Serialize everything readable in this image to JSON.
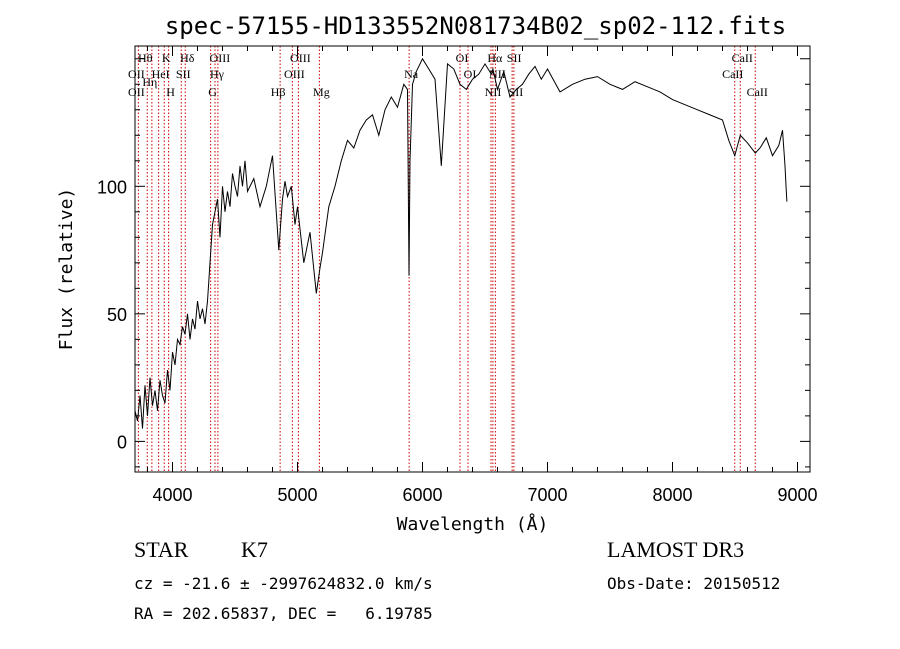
{
  "chart_data": {
    "type": "line",
    "title": "spec-57155-HD133552N081734B02_sp02-112.fits",
    "xlabel": "Wavelength (Å)",
    "ylabel": "Flux (relative)",
    "xlim": [
      3700,
      9100
    ],
    "ylim": [
      -12,
      155
    ],
    "xticks": [
      4000,
      5000,
      6000,
      7000,
      8000,
      9000
    ],
    "yticks": [
      0,
      50,
      100
    ],
    "grid": false,
    "series": [
      {
        "x": [
          3700,
          3720,
          3740,
          3760,
          3780,
          3800,
          3820,
          3840,
          3860,
          3880,
          3900,
          3920,
          3940,
          3960,
          3980,
          4000,
          4020,
          4040,
          4060,
          4080,
          4100,
          4120,
          4140,
          4160,
          4180,
          4200,
          4220,
          4240,
          4260,
          4280,
          4300,
          4320,
          4340,
          4360,
          4380,
          4400,
          4420,
          4440,
          4460,
          4480,
          4500,
          4520,
          4540,
          4560,
          4580,
          4600,
          4650,
          4700,
          4750,
          4800,
          4850,
          4880,
          4900,
          4920,
          4950,
          4980,
          5000,
          5050,
          5100,
          5150,
          5180,
          5200,
          5250,
          5300,
          5350,
          5400,
          5450,
          5500,
          5550,
          5600,
          5650,
          5700,
          5750,
          5800,
          5850,
          5880,
          5892,
          5900,
          5920,
          5950,
          6000,
          6050,
          6100,
          6150,
          6200,
          6250,
          6300,
          6350,
          6400,
          6450,
          6500,
          6550,
          6563,
          6600,
          6650,
          6700,
          6750,
          6800,
          6850,
          6900,
          6950,
          7000,
          7100,
          7200,
          7300,
          7400,
          7500,
          7600,
          7700,
          7800,
          7900,
          8000,
          8100,
          8200,
          8300,
          8400,
          8450,
          8498,
          8542,
          8600,
          8662,
          8700,
          8750,
          8800,
          8850,
          8880,
          8900,
          8910,
          8915
        ],
        "y": [
          12,
          8,
          18,
          5,
          22,
          10,
          25,
          14,
          20,
          12,
          24,
          18,
          15,
          28,
          20,
          35,
          30,
          40,
          38,
          45,
          42,
          50,
          40,
          48,
          44,
          55,
          48,
          52,
          46,
          55,
          70,
          85,
          90,
          95,
          80,
          100,
          90,
          98,
          92,
          105,
          100,
          96,
          108,
          100,
          110,
          98,
          103,
          92,
          100,
          112,
          75,
          95,
          102,
          96,
          100,
          85,
          92,
          70,
          82,
          58,
          68,
          74,
          92,
          100,
          110,
          118,
          115,
          122,
          126,
          128,
          120,
          130,
          135,
          131,
          140,
          138,
          65,
          110,
          140,
          145,
          150,
          146,
          142,
          108,
          148,
          146,
          140,
          138,
          142,
          144,
          148,
          144,
          146,
          138,
          145,
          135,
          138,
          140,
          144,
          147,
          142,
          146,
          137,
          140,
          142,
          143,
          140,
          138,
          141,
          139,
          137,
          134,
          132,
          130,
          128,
          126,
          118,
          112,
          120,
          117,
          113,
          115,
          119,
          112,
          116,
          122,
          108,
          98,
          94
        ]
      }
    ],
    "annotations": [
      {
        "text": "Hθ",
        "x": 3798
      },
      {
        "text": "OII",
        "x": 3727
      },
      {
        "text": "OII",
        "x": 3727
      },
      {
        "text": "K",
        "x": 3934
      },
      {
        "text": "HeI",
        "x": 3889
      },
      {
        "text": "Hη",
        "x": 3835
      },
      {
        "text": "Hδ",
        "x": 4102
      },
      {
        "text": "SII",
        "x": 4070
      },
      {
        "text": "H",
        "x": 3969
      },
      {
        "text": "OIII",
        "x": 4363
      },
      {
        "text": "Hγ",
        "x": 4340
      },
      {
        "text": "G",
        "x": 4305
      },
      {
        "text": "OIII",
        "x": 5007
      },
      {
        "text": "OIII",
        "x": 4959
      },
      {
        "text": "Hβ",
        "x": 4861
      },
      {
        "text": "Mg",
        "x": 5175
      },
      {
        "text": "Na",
        "x": 5893
      },
      {
        "text": "OI",
        "x": 6300
      },
      {
        "text": "OI",
        "x": 6364
      },
      {
        "text": "Hα",
        "x": 6563
      },
      {
        "text": "SII",
        "x": 6717
      },
      {
        "text": "NII",
        "x": 6548
      },
      {
        "text": "SII",
        "x": 6731
      },
      {
        "text": "NII",
        "x": 6583
      },
      {
        "text": "CaII",
        "x": 8542
      },
      {
        "text": "CaII",
        "x": 8498
      },
      {
        "text": "CaII",
        "x": 8662
      }
    ],
    "line_markers": [
      3727,
      3798,
      3835,
      3889,
      3934,
      3969,
      4070,
      4102,
      4305,
      4340,
      4363,
      4861,
      4959,
      5007,
      5175,
      5893,
      6300,
      6364,
      6548,
      6563,
      6583,
      6717,
      6731,
      8498,
      8542,
      8662
    ]
  },
  "info": {
    "object_class": "STAR",
    "subclass": "K7",
    "survey": "LAMOST DR3",
    "cz_line": "cz = -21.6 ± -2997624832.0 km/s",
    "obs_date": "Obs-Date: 20150512",
    "coords": "RA = 202.65837, DEC =   6.19785"
  },
  "colors": {
    "spectrum": "#000000",
    "marker": "#cc0000"
  }
}
